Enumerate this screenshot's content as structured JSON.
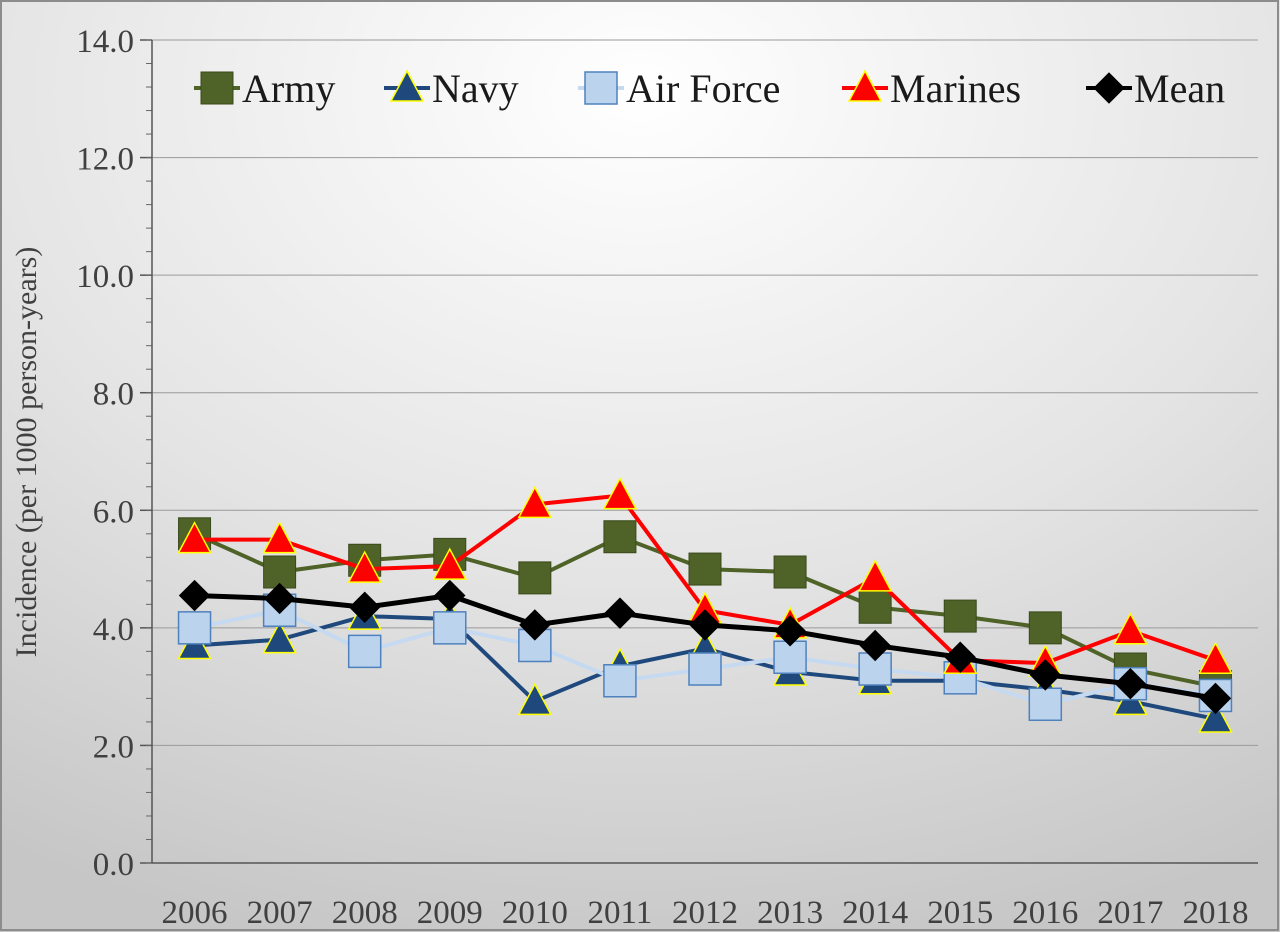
{
  "chart_data": {
    "type": "line",
    "title": "",
    "xlabel": "",
    "ylabel": "Incidence (per 1000 person-years)",
    "x": [
      "2006",
      "2007",
      "2008",
      "2009",
      "2010",
      "2011",
      "2012",
      "2013",
      "2014",
      "2015",
      "2016",
      "2017",
      "2018"
    ],
    "ylim": [
      0,
      14
    ],
    "yticks": [
      "0.0",
      "2.0",
      "4.0",
      "6.0",
      "8.0",
      "10.0",
      "12.0",
      "14.0"
    ],
    "grid": true,
    "legend_position": "top",
    "series": [
      {
        "name": "Army",
        "color": "#4f6228",
        "marker": "square",
        "values": [
          5.6,
          4.95,
          5.15,
          5.25,
          4.85,
          5.55,
          5.0,
          4.95,
          4.35,
          4.2,
          4.0,
          3.3,
          3.0
        ]
      },
      {
        "name": "Navy",
        "color": "#1f497d",
        "marker": "triangle",
        "values": [
          3.7,
          3.8,
          4.2,
          4.15,
          2.75,
          3.35,
          3.65,
          3.25,
          3.1,
          3.1,
          2.95,
          2.75,
          2.45
        ]
      },
      {
        "name": "Air Force",
        "color": "#c5d9f1",
        "marker": "square-light",
        "values": [
          4.0,
          4.3,
          3.6,
          4.0,
          3.7,
          3.1,
          3.3,
          3.5,
          3.3,
          3.15,
          2.7,
          3.05,
          2.85
        ]
      },
      {
        "name": "Marines",
        "color": "#ff0000",
        "marker": "triangle",
        "values": [
          5.5,
          5.5,
          5.0,
          5.05,
          6.1,
          6.25,
          4.3,
          4.05,
          4.85,
          3.45,
          3.4,
          3.95,
          3.45
        ]
      },
      {
        "name": "Mean",
        "color": "#000000",
        "marker": "diamond",
        "values": [
          4.55,
          4.5,
          4.35,
          4.55,
          4.05,
          4.25,
          4.05,
          3.95,
          3.7,
          3.5,
          3.2,
          3.05,
          2.8
        ]
      }
    ]
  }
}
